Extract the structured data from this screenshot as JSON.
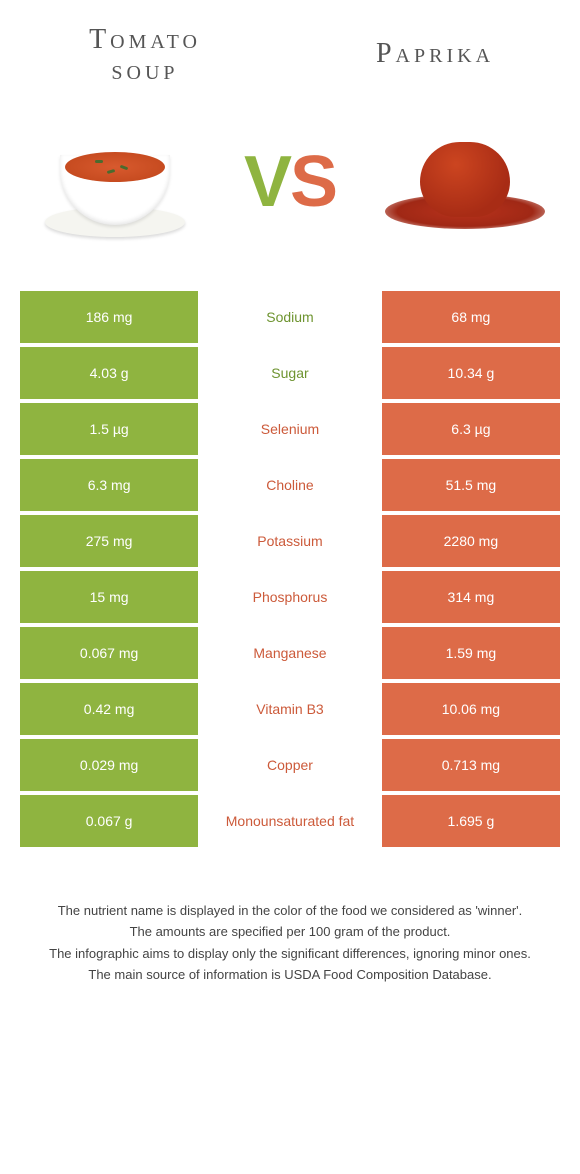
{
  "left_title": "Tomato soup",
  "right_title": "Paprika",
  "vs_text": {
    "v": "V",
    "s": "S"
  },
  "colors": {
    "green": "#8fb440",
    "orange": "#dd6b48",
    "mid_green_text": "#6e9430",
    "mid_orange_text": "#cc5a3a",
    "white": "#ffffff"
  },
  "rows": [
    {
      "label": "Sodium",
      "left": "186 mg",
      "right": "68 mg",
      "winner": "left"
    },
    {
      "label": "Sugar",
      "left": "4.03 g",
      "right": "10.34 g",
      "winner": "left"
    },
    {
      "label": "Selenium",
      "left": "1.5 µg",
      "right": "6.3 µg",
      "winner": "right"
    },
    {
      "label": "Choline",
      "left": "6.3 mg",
      "right": "51.5 mg",
      "winner": "right"
    },
    {
      "label": "Potassium",
      "left": "275 mg",
      "right": "2280 mg",
      "winner": "right"
    },
    {
      "label": "Phosphorus",
      "left": "15 mg",
      "right": "314 mg",
      "winner": "right"
    },
    {
      "label": "Manganese",
      "left": "0.067 mg",
      "right": "1.59 mg",
      "winner": "right"
    },
    {
      "label": "Vitamin B3",
      "left": "0.42 mg",
      "right": "10.06 mg",
      "winner": "right"
    },
    {
      "label": "Copper",
      "left": "0.029 mg",
      "right": "0.713 mg",
      "winner": "right"
    },
    {
      "label": "Monounsaturated fat",
      "left": "0.067 g",
      "right": "1.695 g",
      "winner": "right"
    }
  ],
  "footer": {
    "line1": "The nutrient name is displayed in the color of the food we considered as 'winner'.",
    "line2": "The amounts are specified per 100 gram of the product.",
    "line3": "The infographic aims to display only the significant differences, ignoring minor ones.",
    "line4": "The main source of information is USDA Food Composition Database."
  }
}
